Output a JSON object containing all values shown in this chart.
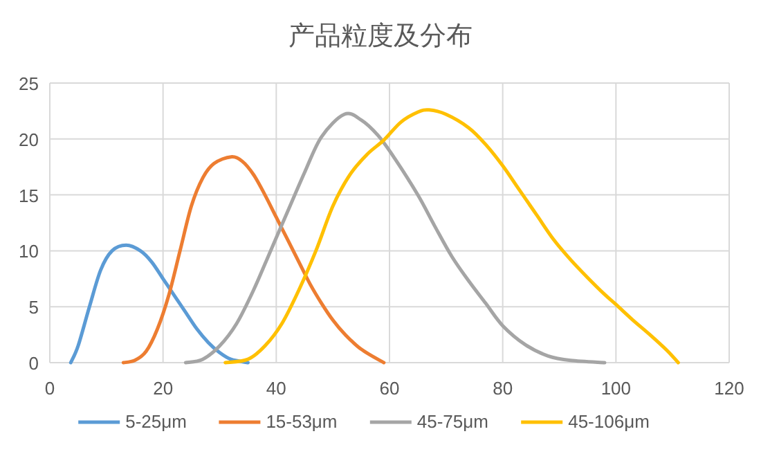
{
  "chart_data": {
    "type": "line",
    "title": "产品粒度及分布",
    "xlim": [
      0,
      120
    ],
    "xticks": [
      0,
      20,
      40,
      60,
      80,
      100,
      120
    ],
    "ylim": [
      0,
      25
    ],
    "yticks": [
      0,
      5,
      10,
      15,
      20,
      25
    ],
    "grid": true,
    "legend": "bottom",
    "marker": "none",
    "line_style": "solid",
    "series": [
      {
        "name": "5-25μm",
        "color": "#5b9bd5",
        "x": [
          3.7,
          5,
          7,
          9,
          11,
          13.5,
          16,
          18,
          20,
          22,
          24,
          26,
          28,
          30,
          32,
          35
        ],
        "values": [
          0,
          1.5,
          5,
          8.3,
          10,
          10.5,
          10,
          9,
          7.5,
          6,
          4.5,
          3,
          1.8,
          0.9,
          0.3,
          0
        ]
      },
      {
        "name": "15-53μm",
        "color": "#ed7d31",
        "x": [
          13,
          15,
          17,
          19,
          21,
          23,
          25,
          27,
          29,
          32,
          34,
          36,
          38,
          40,
          42,
          44,
          46,
          48,
          50,
          52,
          55,
          59
        ],
        "values": [
          0,
          0.2,
          1,
          3,
          6,
          10,
          14,
          16.5,
          17.8,
          18.4,
          18,
          16.8,
          15,
          13,
          11,
          9,
          7,
          5.3,
          3.8,
          2.6,
          1.2,
          0
        ]
      },
      {
        "name": "45-75μm",
        "color": "#a5a5a5",
        "x": [
          24,
          27,
          30,
          33,
          36,
          39,
          42,
          45,
          48,
          52,
          55,
          58,
          61,
          65,
          68,
          71,
          74,
          77,
          80,
          84,
          88,
          92,
          98
        ],
        "values": [
          0,
          0.3,
          1.5,
          3.5,
          6.5,
          10,
          13.5,
          17,
          20.2,
          22.2,
          21.7,
          20.3,
          18.2,
          15,
          12.2,
          9.5,
          7.3,
          5.3,
          3.3,
          1.6,
          0.6,
          0.2,
          0
        ]
      },
      {
        "name": "45-106μm",
        "color": "#ffc000",
        "x": [
          31,
          35,
          38,
          41,
          44,
          47,
          50,
          53,
          56,
          59,
          62,
          65,
          67,
          70,
          74,
          77,
          80,
          83,
          86,
          89,
          92,
          95,
          98,
          100,
          103,
          106,
          109,
          111
        ],
        "values": [
          0,
          0.3,
          1.5,
          3.5,
          6.5,
          10,
          14,
          16.8,
          18.6,
          19.9,
          21.5,
          22.4,
          22.6,
          22.2,
          21,
          19.5,
          17.6,
          15.4,
          13.2,
          11,
          9.2,
          7.6,
          6.1,
          5.2,
          3.8,
          2.5,
          1.1,
          0
        ]
      }
    ]
  }
}
